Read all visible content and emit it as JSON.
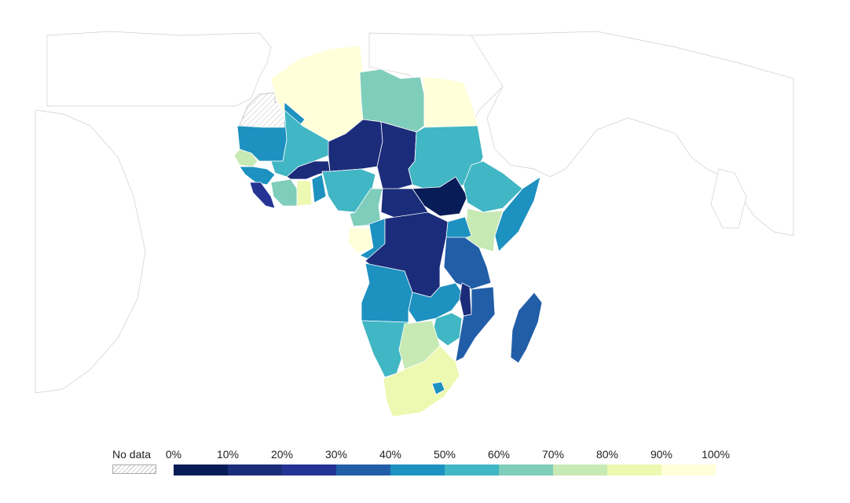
{
  "legend": {
    "no_data_label": "No data",
    "ticks": [
      "0%",
      "10%",
      "20%",
      "30%",
      "40%",
      "50%",
      "60%",
      "70%",
      "80%",
      "90%",
      "100%"
    ],
    "bins": [
      {
        "range": "0-10%",
        "color": "#081d58"
      },
      {
        "range": "10-20%",
        "color": "#1b2c7a"
      },
      {
        "range": "20-30%",
        "color": "#253494"
      },
      {
        "range": "30-40%",
        "color": "#225ea8"
      },
      {
        "range": "40-50%",
        "color": "#1d91c0"
      },
      {
        "range": "50-60%",
        "color": "#41b6c4"
      },
      {
        "range": "60-70%",
        "color": "#7fcdbb"
      },
      {
        "range": "70-80%",
        "color": "#c7e9b4"
      },
      {
        "range": "80-90%",
        "color": "#edf8b1"
      },
      {
        "range": "90-100%",
        "color": "#ffffd9"
      }
    ]
  },
  "map_data": {
    "region": "Africa",
    "regions": [
      {
        "name": "Algeria",
        "bin": 9
      },
      {
        "name": "Egypt",
        "bin": 9
      },
      {
        "name": "Libya",
        "bin": 6
      },
      {
        "name": "Mauritania",
        "bin": 4
      },
      {
        "name": "Mali",
        "bin": 5
      },
      {
        "name": "Niger",
        "bin": 1
      },
      {
        "name": "Chad",
        "bin": 1
      },
      {
        "name": "Sudan",
        "bin": 5
      },
      {
        "name": "South Sudan",
        "bin": 0
      },
      {
        "name": "Senegal",
        "bin": 7
      },
      {
        "name": "Guinea",
        "bin": 4
      },
      {
        "name": "Sierra Leone",
        "bin": 2
      },
      {
        "name": "Cote d'Ivoire",
        "bin": 6
      },
      {
        "name": "Ghana",
        "bin": 8
      },
      {
        "name": "Burkina Faso",
        "bin": 1
      },
      {
        "name": "Nigeria",
        "bin": 5
      },
      {
        "name": "Cameroon",
        "bin": 6
      },
      {
        "name": "Central African Republic",
        "bin": 1
      },
      {
        "name": "Ethiopia",
        "bin": 5
      },
      {
        "name": "Somalia",
        "bin": 4
      },
      {
        "name": "Kenya",
        "bin": 7
      },
      {
        "name": "Gabon",
        "bin": 9
      },
      {
        "name": "Congo",
        "bin": 4
      },
      {
        "name": "DR Congo",
        "bin": 1
      },
      {
        "name": "Uganda",
        "bin": 4
      },
      {
        "name": "Tanzania",
        "bin": 3
      },
      {
        "name": "Angola",
        "bin": 4
      },
      {
        "name": "Zambia",
        "bin": 4
      },
      {
        "name": "Malawi",
        "bin": 1
      },
      {
        "name": "Mozambique",
        "bin": 3
      },
      {
        "name": "Zimbabwe",
        "bin": 5
      },
      {
        "name": "Namibia",
        "bin": 5
      },
      {
        "name": "Botswana",
        "bin": 7
      },
      {
        "name": "South Africa",
        "bin": 8
      },
      {
        "name": "Lesotho",
        "bin": 4
      },
      {
        "name": "Madagascar",
        "bin": 3
      },
      {
        "name": "Western Sahara",
        "bin": null
      }
    ]
  }
}
